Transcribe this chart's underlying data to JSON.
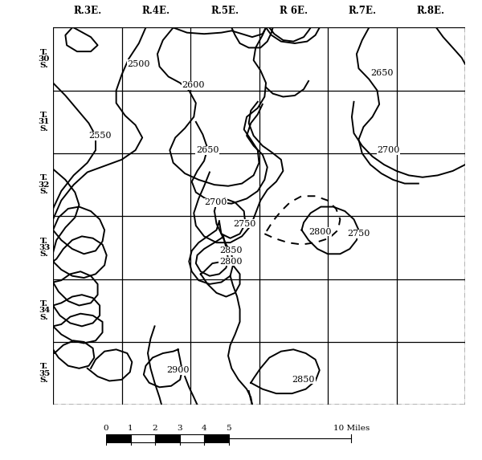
{
  "col_labels": [
    "R.3E.",
    "R.4E.",
    "R.5E.",
    "R 6E.",
    "R.7E.",
    "R.8E."
  ],
  "row_labels": [
    "T.\n30\nS.",
    "T.\n31\nS.",
    "T.\n32\nS.",
    "T.\n33\nS.",
    "T.\n34\nS.",
    "T.\n35\nS."
  ],
  "background_color": "#ffffff",
  "figsize": [
    6.0,
    5.73
  ],
  "dpi": 100
}
